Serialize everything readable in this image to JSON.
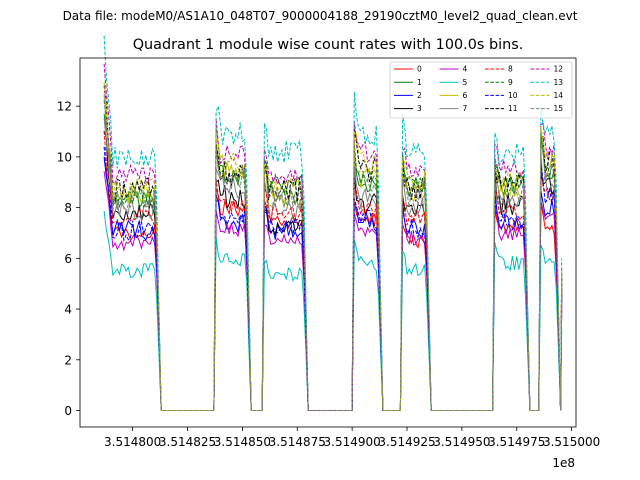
{
  "figure": {
    "suptitle": "Data file: modeM0/AS1A10_048T07_9000004188_29190cztM0_level2_quad_clean.evt"
  },
  "chart_data": {
    "type": "line",
    "title": "Quadrant 1 module wise count rates with 100.0s bins.",
    "xlabel": "",
    "ylabel": "",
    "x_offset_label": "1e8",
    "xlim": [
      3.514776,
      3.515002
    ],
    "ylim": [
      -0.65,
      13.9
    ],
    "xticks": [
      3.5148,
      3.514825,
      3.51485,
      3.514875,
      3.5149,
      3.514925,
      3.51495,
      3.514975,
      3.515
    ],
    "xtick_labels": [
      "3.514800",
      "3.514825",
      "3.514850",
      "3.514875",
      "3.514900",
      "3.514925",
      "3.514950",
      "3.514975",
      "3.515000"
    ],
    "yticks": [
      0,
      2,
      4,
      6,
      8,
      10,
      12
    ],
    "ytick_labels": [
      "0",
      "2",
      "4",
      "6",
      "8",
      "10",
      "12"
    ],
    "grid": false,
    "legend_position": "top-right",
    "legend_columns": 4,
    "segments": [
      {
        "x_start": 3.514787,
        "x_end": 3.514813
      },
      {
        "x_start": 3.514837,
        "x_end": 3.514854
      },
      {
        "x_start": 3.514859,
        "x_end": 3.51488
      },
      {
        "x_start": 3.5149,
        "x_end": 3.514914
      },
      {
        "x_start": 3.514922,
        "x_end": 3.514936
      },
      {
        "x_start": 3.514964,
        "x_end": 3.514981
      },
      {
        "x_start": 3.514985,
        "x_end": 3.514995
      }
    ],
    "series": [
      {
        "name": "0",
        "color": "#ff0000",
        "dashed": false,
        "levels": [
          7.0,
          8.0,
          7.4,
          7.5,
          6.7,
          7.3,
          7.2
        ]
      },
      {
        "name": "1",
        "color": "#008000",
        "dashed": false,
        "levels": [
          8.3,
          9.3,
          8.9,
          8.8,
          8.8,
          8.9,
          9.4
        ]
      },
      {
        "name": "2",
        "color": "#0000ff",
        "dashed": false,
        "levels": [
          7.1,
          7.4,
          7.1,
          7.3,
          7.2,
          7.4,
          8.1
        ]
      },
      {
        "name": "3",
        "color": "#000000",
        "dashed": false,
        "levels": [
          7.8,
          8.4,
          7.2,
          8.1,
          7.8,
          8.1,
          8.7
        ]
      },
      {
        "name": "4",
        "color": "#bf00bf",
        "dashed": false,
        "levels": [
          6.6,
          7.1,
          6.7,
          7.0,
          6.8,
          7.0,
          7.5
        ]
      },
      {
        "name": "5",
        "color": "#00bfbf",
        "dashed": false,
        "levels": [
          5.5,
          6.0,
          5.4,
          5.8,
          5.6,
          5.8,
          5.9
        ]
      },
      {
        "name": "6",
        "color": "#bfbf00",
        "dashed": false,
        "levels": [
          8.6,
          9.6,
          8.4,
          9.2,
          8.6,
          8.6,
          9.6
        ]
      },
      {
        "name": "7",
        "color": "#808080",
        "dashed": false,
        "levels": [
          8.0,
          8.7,
          7.8,
          8.3,
          8.0,
          8.1,
          8.9
        ]
      },
      {
        "name": "8",
        "color": "#ff0000",
        "dashed": true,
        "levels": [
          7.6,
          8.1,
          7.8,
          7.9,
          7.6,
          7.8,
          8.5
        ]
      },
      {
        "name": "9",
        "color": "#008000",
        "dashed": true,
        "levels": [
          8.4,
          9.3,
          8.5,
          9.1,
          8.9,
          8.9,
          9.6
        ]
      },
      {
        "name": "10",
        "color": "#0000ff",
        "dashed": true,
        "levels": [
          7.1,
          7.6,
          7.2,
          7.5,
          7.2,
          7.5,
          8.4
        ]
      },
      {
        "name": "11",
        "color": "#000000",
        "dashed": true,
        "levels": [
          8.7,
          9.4,
          8.7,
          9.5,
          8.7,
          8.9,
          9.9
        ]
      },
      {
        "name": "12",
        "color": "#bf00bf",
        "dashed": true,
        "levels": [
          9.3,
          10.1,
          9.2,
          10.2,
          9.4,
          9.6,
          10.3
        ]
      },
      {
        "name": "13",
        "color": "#00bfbf",
        "dashed": true,
        "levels": [
          10.0,
          10.9,
          10.2,
          10.8,
          10.2,
          10.1,
          10.9
        ]
      },
      {
        "name": "14",
        "color": "#bfbf00",
        "dashed": true,
        "levels": [
          8.7,
          9.7,
          8.8,
          9.8,
          9.0,
          9.0,
          10.1
        ]
      },
      {
        "name": "15",
        "color": "#808080",
        "dashed": true,
        "levels": [
          8.3,
          9.1,
          8.4,
          9.0,
          8.5,
          8.6,
          9.5
        ]
      }
    ]
  }
}
